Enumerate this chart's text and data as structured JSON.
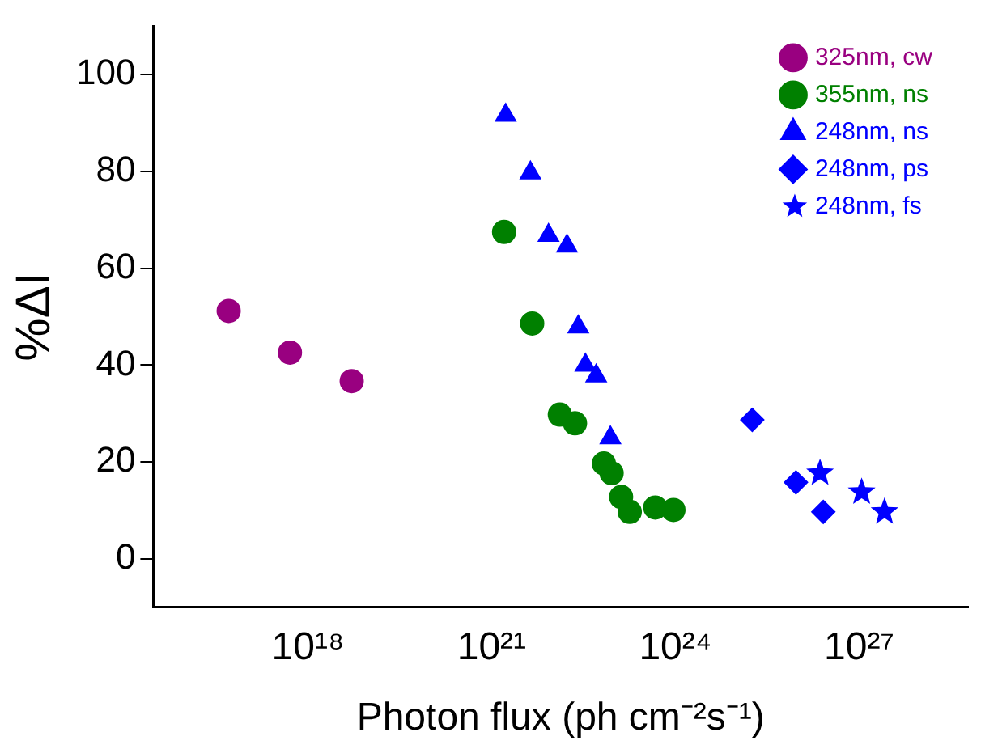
{
  "chart_data": {
    "type": "scatter",
    "xlabel": "Photon flux (ph cm⁻²s⁻¹)",
    "ylabel": "%ΔI",
    "log": "x",
    "grid": false,
    "legend": "top right",
    "xlim": [
      3000000000000000.0,
      6e+28
    ],
    "xticks": [
      {
        "value": 1e+18,
        "label": "10¹⁸"
      },
      {
        "value": 1e+21,
        "label": "10²¹"
      },
      {
        "value": 1e+24,
        "label": "10²⁴"
      },
      {
        "value": 1e+27,
        "label": "10²⁷"
      }
    ],
    "ylim": [
      -10,
      110
    ],
    "yticks": [
      0,
      20,
      40,
      60,
      80,
      100
    ],
    "series": [
      {
        "name": "325nm, cw",
        "color": "#990080",
        "marker": "circle",
        "x": [
          5.1e+16,
          5.1e+17,
          5.2e+18
        ],
        "values": [
          51.2,
          42.6,
          36.7
        ]
      },
      {
        "name": "355nm, ns",
        "color": "#008000",
        "marker": "circle",
        "x": [
          1.6e+21,
          4.6e+21,
          1.3e+22,
          2.3e+22,
          6.8e+22,
          9.1e+22,
          1.3e+23,
          1.8e+23,
          4.7e+23,
          9.3e+23
        ],
        "values": [
          67.5,
          48.6,
          29.8,
          28,
          19.7,
          17.7,
          12.8,
          9.7,
          10.6,
          10.1
        ]
      },
      {
        "name": "248nm, ns",
        "color": "#0000ff",
        "marker": "triangle",
        "x": [
          1.7e+21,
          4.3e+21,
          8.5e+21,
          1.7e+22,
          2.6e+22,
          3.4e+22,
          5.1e+22,
          8.7e+22
        ],
        "values": [
          91.6,
          79.7,
          66.8,
          64.6,
          47.9,
          40,
          37.8,
          25
        ]
      },
      {
        "name": "248nm, ps",
        "color": "#0000ff",
        "marker": "diamond",
        "x": [
          1.8e+25,
          9.3e+25,
          2.6e+26
        ],
        "values": [
          28.7,
          15.8,
          9.7
        ]
      },
      {
        "name": "248nm, fs",
        "color": "#0000ff",
        "marker": "star",
        "x": [
          2.3e+26,
          1.1e+27,
          2.6e+27
        ],
        "values": [
          17.7,
          13.8,
          9.7
        ]
      }
    ]
  }
}
